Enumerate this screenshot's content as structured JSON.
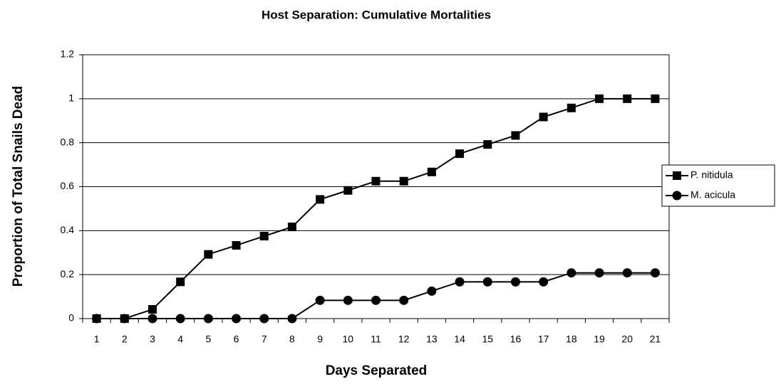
{
  "chart_data": {
    "type": "line",
    "title": "Host Separation: Cumulative Mortalities",
    "x_label": "Days Separated",
    "y_label": "Proportion of Total Snails Dead",
    "categories": [
      "1",
      "2",
      "3",
      "4",
      "5",
      "6",
      "7",
      "8",
      "9",
      "10",
      "11",
      "12",
      "13",
      "14",
      "15",
      "16",
      "17",
      "18",
      "19",
      "20",
      "21"
    ],
    "series": [
      {
        "name": "P. nitidula",
        "color": "#000000",
        "marker": "square",
        "values": [
          0,
          0,
          0.042,
          0.167,
          0.292,
          0.333,
          0.375,
          0.417,
          0.542,
          0.583,
          0.625,
          0.625,
          0.667,
          0.75,
          0.792,
          0.833,
          0.917,
          0.958,
          1,
          1,
          1
        ]
      },
      {
        "name": "M. acicula",
        "color": "#000000",
        "marker": "circle",
        "values": [
          0,
          0,
          0,
          0,
          0,
          0,
          0,
          0,
          0.083,
          0.083,
          0.083,
          0.083,
          0.125,
          0.167,
          0.167,
          0.167,
          0.167,
          0.208,
          0.208,
          0.208,
          0.208
        ]
      }
    ],
    "ylim": [
      0,
      1.2
    ],
    "yticks": [
      0,
      0.2,
      0.4,
      0.6,
      0.8,
      1,
      1.2
    ],
    "grid": true,
    "legend": "right"
  }
}
